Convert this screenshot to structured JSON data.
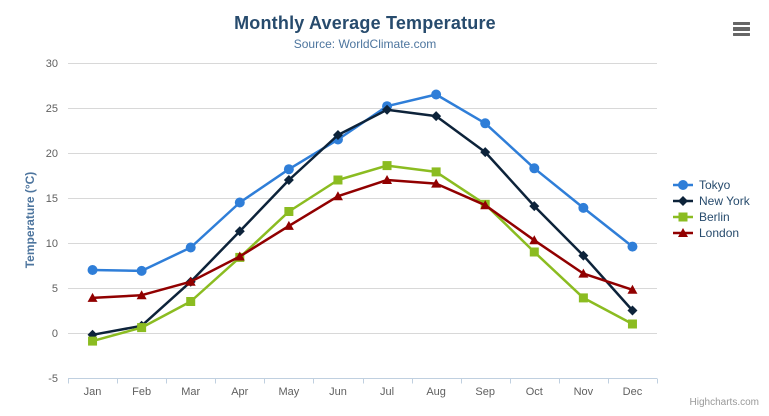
{
  "chart_data": {
    "type": "line",
    "title": "Monthly Average Temperature",
    "subtitle": "Source: WorldClimate.com",
    "xlabel": "",
    "ylabel": "Temperature (°C)",
    "ylim": [
      -5,
      30
    ],
    "yticks": [
      -5,
      0,
      5,
      10,
      15,
      20,
      25,
      30
    ],
    "grid": true,
    "legend_position": "right",
    "categories": [
      "Jan",
      "Feb",
      "Mar",
      "Apr",
      "May",
      "Jun",
      "Jul",
      "Aug",
      "Sep",
      "Oct",
      "Nov",
      "Dec"
    ],
    "series": [
      {
        "name": "Tokyo",
        "color": "#2f7ed8",
        "marker": "circle",
        "values": [
          7.0,
          6.9,
          9.5,
          14.5,
          18.2,
          21.5,
          25.2,
          26.5,
          23.3,
          18.3,
          13.9,
          9.6
        ]
      },
      {
        "name": "New York",
        "color": "#0d233a",
        "marker": "diamond",
        "values": [
          -0.2,
          0.8,
          5.7,
          11.3,
          17.0,
          22.0,
          24.8,
          24.1,
          20.1,
          14.1,
          8.6,
          2.5
        ]
      },
      {
        "name": "Berlin",
        "color": "#8bbc21",
        "marker": "square",
        "values": [
          -0.9,
          0.6,
          3.5,
          8.4,
          13.5,
          17.0,
          18.6,
          17.9,
          14.3,
          9.0,
          3.9,
          1.0
        ]
      },
      {
        "name": "London",
        "color": "#910000",
        "marker": "triangle",
        "values": [
          3.9,
          4.2,
          5.7,
          8.5,
          11.9,
          15.2,
          17.0,
          16.6,
          14.2,
          10.3,
          6.6,
          4.8
        ]
      }
    ]
  },
  "credits": {
    "label": "Highcharts.com"
  },
  "menu": {
    "icon": "hamburger-icon"
  },
  "palette": {
    "title_text": "#274b6d",
    "subtitle_text": "#4d759e",
    "axis_title_text": "#4d759e",
    "tick_label_text": "#606060",
    "gridline": "#d8d8d8",
    "axis_line": "#c0d0e0",
    "legend_text": "#274b6d",
    "menu_icon": "#666666",
    "credits_text": "#999999"
  }
}
